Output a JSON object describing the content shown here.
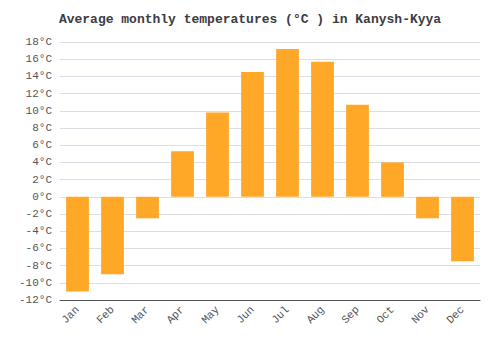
{
  "chart_data": {
    "type": "bar",
    "title": "Average monthly temperatures (°C ) in Kanysh-Kyya",
    "categories": [
      "Jan",
      "Feb",
      "Mar",
      "Apr",
      "May",
      "Jun",
      "Jul",
      "Aug",
      "Sep",
      "Oct",
      "Nov",
      "Dec"
    ],
    "values": [
      -11,
      -9,
      -2.5,
      5.3,
      9.8,
      14.5,
      17.2,
      15.7,
      10.7,
      4.0,
      -2.5,
      -7.5
    ],
    "color": "#FFA726",
    "ylim": [
      -12,
      18
    ],
    "yticks": [
      {
        "value": -12,
        "label": "-12°C"
      },
      {
        "value": -10,
        "label": "-10°C"
      },
      {
        "value": -8,
        "label": "-8°C"
      },
      {
        "value": -6,
        "label": "-6°C"
      },
      {
        "value": -4,
        "label": "-4°C"
      },
      {
        "value": -2,
        "label": "-2°C"
      },
      {
        "value": 0,
        "label": "0°C"
      },
      {
        "value": 2,
        "label": "2°C"
      },
      {
        "value": 4,
        "label": "4°C"
      },
      {
        "value": 6,
        "label": "6°C"
      },
      {
        "value": 8,
        "label": "8°C"
      },
      {
        "value": 10,
        "label": "10°C"
      },
      {
        "value": 12,
        "label": "12°C"
      },
      {
        "value": 14,
        "label": "14°C"
      },
      {
        "value": 16,
        "label": "16°C"
      },
      {
        "value": 18,
        "label": "18°C"
      }
    ],
    "grid": true
  }
}
